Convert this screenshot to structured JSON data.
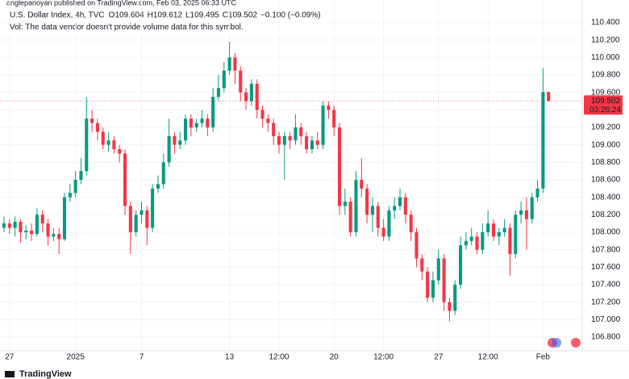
{
  "header": {
    "published": "anglepanoyan published on TradingView.com, Feb 03, 2025 06:33 UTC",
    "o_label": "O",
    "h_label": "H",
    "l_label": "L",
    "c_label": "C",
    "change": "−0.100 (−0.09%)",
    "volume_note": "Vol: The data vendor doesn't provide volume data for this symbol.",
    "countdown": "03:26:24"
  },
  "footer": {
    "brand": "TradingView"
  },
  "chart_data": {
    "type": "candlestick",
    "title": "U.S. Dollar Index, 4h, TVC",
    "up_color": "#089981",
    "down_color": "#f23645",
    "grid": true,
    "xlim": [
      -0.73,
      105.13
    ],
    "ylim": [
      106.643,
      110.658
    ],
    "xticks": [
      {
        "value": 1,
        "label": "27"
      },
      {
        "value": 13,
        "label": "2025"
      },
      {
        "value": 25,
        "label": "7"
      },
      {
        "value": 41,
        "label": "13"
      },
      {
        "value": 50,
        "label": "12:00"
      },
      {
        "value": 60,
        "label": "20"
      },
      {
        "value": 69,
        "label": "12:00"
      },
      {
        "value": 79,
        "label": "27"
      },
      {
        "value": 88,
        "label": "12:00"
      },
      {
        "value": 98,
        "label": "Feb"
      }
    ],
    "yticks": [
      {
        "value": 110.4,
        "label": "110.400"
      },
      {
        "value": 110.2,
        "label": "110.200"
      },
      {
        "value": 110.0,
        "label": "110.000"
      },
      {
        "value": 109.8,
        "label": "109.800"
      },
      {
        "value": 109.6,
        "label": "109.600"
      },
      {
        "value": 109.4,
        "label": "109.400"
      },
      {
        "value": 109.2,
        "label": "109.200"
      },
      {
        "value": 109.0,
        "label": "109.000"
      },
      {
        "value": 108.8,
        "label": "108.800"
      },
      {
        "value": 108.6,
        "label": "108.600"
      },
      {
        "value": 108.4,
        "label": "108.400"
      },
      {
        "value": 108.2,
        "label": "108.200"
      },
      {
        "value": 108.0,
        "label": "108.000"
      },
      {
        "value": 107.8,
        "label": "107.800"
      },
      {
        "value": 107.6,
        "label": "107.600"
      },
      {
        "value": 107.4,
        "label": "107.400"
      },
      {
        "value": 107.2,
        "label": "107.200"
      },
      {
        "value": 107.0,
        "label": "107.000"
      },
      {
        "value": 106.8,
        "label": "106.800"
      }
    ],
    "open": [
      108.05,
      108.1,
      108.05,
      108.12,
      108.0,
      108.02,
      107.98,
      108.2,
      108.1,
      107.95,
      107.98,
      107.92,
      108.4,
      108.45,
      108.6,
      108.7,
      109.3,
      109.25,
      109.15,
      109.0,
      109.05,
      108.95,
      108.9,
      108.3,
      108.0,
      108.2,
      108.25,
      108.05,
      108.5,
      108.55,
      108.8,
      109.1,
      109.0,
      109.05,
      109.3,
      109.2,
      109.25,
      109.3,
      109.2,
      109.55,
      109.65,
      109.85,
      110.0,
      109.85,
      109.6,
      109.5,
      109.7,
      109.4,
      109.3,
      109.25,
      109.1,
      109.0,
      109.1,
      109.05,
      109.2,
      109.1,
      108.95,
      109.05,
      109.0,
      109.45,
      109.4,
      109.2,
      108.3,
      108.35,
      108.0,
      108.6,
      108.5,
      108.2,
      108.3,
      108.05,
      107.95,
      108.25,
      108.3,
      108.4,
      108.2,
      108.0,
      107.7,
      107.55,
      107.25,
      107.45,
      107.7,
      107.2,
      107.1,
      107.4,
      107.85,
      107.9,
      107.95,
      107.8,
      108.0,
      108.1,
      107.95,
      108.0,
      108.05,
      107.75,
      108.2,
      108.25,
      108.15,
      108.4,
      108.5,
      109.604
    ],
    "high": [
      108.18,
      108.15,
      108.18,
      108.15,
      108.08,
      108.1,
      108.28,
      108.25,
      108.15,
      108.05,
      108.05,
      108.45,
      108.55,
      108.7,
      108.85,
      109.55,
      109.4,
      109.3,
      109.2,
      109.15,
      109.1,
      109.0,
      108.95,
      108.35,
      108.25,
      108.35,
      108.3,
      108.55,
      108.65,
      108.9,
      109.3,
      109.15,
      109.15,
      109.35,
      109.35,
      109.3,
      109.4,
      109.35,
      109.65,
      109.8,
      109.95,
      110.18,
      110.05,
      109.9,
      109.65,
      109.75,
      109.75,
      109.45,
      109.35,
      109.3,
      109.15,
      109.15,
      109.15,
      109.35,
      109.25,
      109.15,
      109.1,
      109.15,
      109.5,
      109.5,
      109.45,
      109.25,
      108.5,
      108.4,
      108.7,
      108.85,
      108.55,
      108.4,
      108.35,
      108.15,
      108.3,
      108.4,
      108.5,
      108.45,
      108.25,
      108.05,
      107.75,
      107.6,
      107.55,
      107.8,
      107.75,
      107.25,
      107.45,
      107.95,
      108.0,
      108.05,
      108.0,
      108.1,
      108.25,
      108.15,
      108.05,
      108.15,
      108.1,
      108.25,
      108.35,
      108.4,
      108.45,
      108.6,
      109.88,
      109.612
    ],
    "low": [
      108.0,
      107.98,
      107.95,
      107.88,
      107.92,
      107.9,
      107.95,
      108.0,
      107.85,
      107.9,
      107.75,
      107.9,
      108.35,
      108.4,
      108.55,
      108.65,
      109.15,
      109.05,
      108.95,
      108.92,
      108.9,
      108.8,
      108.2,
      107.75,
      107.95,
      108.1,
      107.85,
      108.0,
      108.45,
      108.5,
      108.75,
      108.9,
      108.95,
      109.0,
      109.1,
      109.15,
      109.2,
      109.1,
      109.15,
      109.5,
      109.6,
      109.8,
      109.7,
      109.5,
      109.4,
      109.45,
      109.3,
      109.2,
      109.15,
      109.0,
      108.9,
      108.6,
      108.95,
      109.0,
      109.0,
      108.9,
      108.9,
      108.95,
      108.95,
      109.3,
      109.1,
      108.2,
      108.2,
      107.95,
      107.95,
      108.4,
      108.1,
      108.0,
      107.95,
      107.9,
      107.9,
      108.15,
      108.25,
      108.1,
      107.9,
      107.6,
      107.45,
      107.2,
      107.2,
      107.4,
      107.1,
      106.98,
      107.05,
      107.35,
      107.8,
      107.85,
      107.75,
      107.75,
      107.95,
      107.9,
      107.85,
      107.95,
      107.5,
      107.7,
      108.1,
      107.8,
      108.1,
      108.35,
      108.45,
      109.495
    ],
    "close": [
      108.1,
      108.05,
      108.12,
      108.0,
      108.02,
      107.98,
      108.2,
      108.1,
      107.95,
      107.98,
      107.92,
      108.4,
      108.45,
      108.6,
      108.7,
      109.3,
      109.25,
      109.15,
      109.0,
      109.05,
      108.95,
      108.9,
      108.3,
      108.0,
      108.2,
      108.25,
      108.05,
      108.5,
      108.55,
      108.8,
      109.1,
      109.0,
      109.05,
      109.3,
      109.2,
      109.25,
      109.3,
      109.2,
      109.55,
      109.65,
      109.85,
      110.0,
      109.85,
      109.6,
      109.5,
      109.7,
      109.4,
      109.3,
      109.25,
      109.1,
      109.0,
      109.1,
      109.05,
      109.2,
      109.1,
      108.95,
      109.05,
      109.0,
      109.45,
      109.4,
      109.2,
      108.3,
      108.35,
      108.0,
      108.6,
      108.5,
      108.2,
      108.3,
      108.05,
      107.95,
      108.25,
      108.3,
      108.4,
      108.2,
      108.0,
      107.7,
      107.55,
      107.25,
      107.45,
      107.7,
      107.2,
      107.1,
      107.4,
      107.85,
      107.9,
      107.95,
      107.8,
      108.0,
      108.1,
      107.95,
      108.0,
      108.05,
      107.75,
      108.2,
      108.25,
      108.15,
      108.4,
      108.5,
      109.604,
      109.502
    ]
  }
}
